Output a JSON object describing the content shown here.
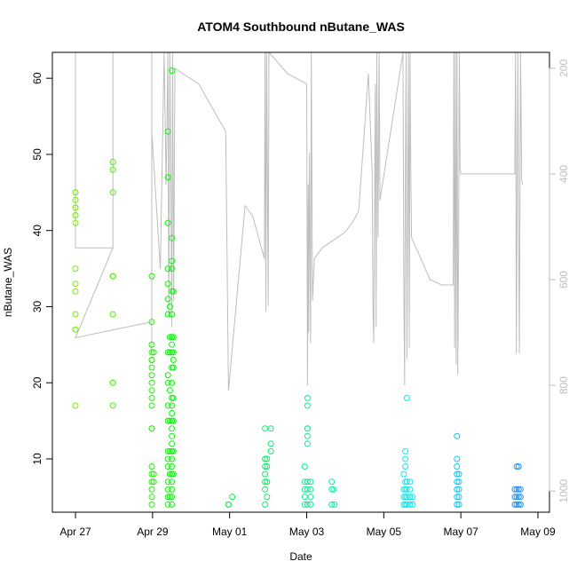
{
  "chart_data": {
    "type": "scatter",
    "title": "ATOM4 Southbound nButane_WAS",
    "xlabel": "Date",
    "ylabel": "nButane_WAS",
    "x_ticks": [
      "Apr 27",
      "Apr 29",
      "May 01",
      "May 03",
      "May 05",
      "May 07",
      "May 09"
    ],
    "y_ticks": [
      10,
      20,
      30,
      40,
      50,
      60
    ],
    "y2_ticks": [
      200,
      400,
      600,
      800,
      1000
    ],
    "x_range_days": [
      -0.6,
      12.3
    ],
    "ylim": [
      3,
      63.4
    ],
    "y2lim": [
      1040,
      170
    ],
    "x_origin": "Apr 27",
    "grid": false,
    "colors": {
      "altitude_line": "#bdbdbd",
      "axis": "#000000",
      "right_axis": "#bdbdbd",
      "start_point": "#77ee00",
      "mid_point": "#11ee11",
      "late_point": "#00eeee",
      "end_point": "#1e90ff"
    },
    "points": [
      [
        0,
        45
      ],
      [
        0,
        45
      ],
      [
        0,
        44
      ],
      [
        0,
        43
      ],
      [
        0,
        43
      ],
      [
        0,
        42
      ],
      [
        0,
        42
      ],
      [
        0,
        41
      ],
      [
        0,
        35
      ],
      [
        0,
        33
      ],
      [
        0,
        32
      ],
      [
        0,
        29
      ],
      [
        0,
        27
      ],
      [
        0,
        27
      ],
      [
        0,
        17
      ],
      [
        0.97,
        49
      ],
      [
        0.97,
        48
      ],
      [
        0.97,
        45
      ],
      [
        0.97,
        34
      ],
      [
        0.97,
        34
      ],
      [
        0.97,
        29
      ],
      [
        0.97,
        20
      ],
      [
        0.97,
        20
      ],
      [
        0.97,
        17
      ],
      [
        1.98,
        34
      ],
      [
        1.98,
        28
      ],
      [
        1.98,
        25
      ],
      [
        1.98,
        25
      ],
      [
        1.98,
        24
      ],
      [
        1.98,
        23
      ],
      [
        1.98,
        23
      ],
      [
        1.98,
        22
      ],
      [
        1.98,
        21
      ],
      [
        1.98,
        20
      ],
      [
        1.98,
        19
      ],
      [
        1.98,
        18
      ],
      [
        1.98,
        17
      ],
      [
        1.98,
        14
      ],
      [
        1.98,
        14
      ],
      [
        1.98,
        9
      ],
      [
        1.98,
        8
      ],
      [
        1.98,
        7
      ],
      [
        1.98,
        6
      ],
      [
        1.98,
        5
      ],
      [
        1.98,
        4
      ],
      [
        2.03,
        24
      ],
      [
        2.03,
        8
      ],
      [
        2.03,
        7
      ],
      [
        2.4,
        53
      ],
      [
        2.4,
        47
      ],
      [
        2.4,
        41
      ],
      [
        2.4,
        35
      ],
      [
        2.4,
        33
      ],
      [
        2.4,
        31
      ],
      [
        2.4,
        29
      ],
      [
        2.4,
        24
      ],
      [
        2.4,
        21
      ],
      [
        2.4,
        20
      ],
      [
        2.4,
        17
      ],
      [
        2.4,
        15
      ],
      [
        2.4,
        11
      ],
      [
        2.4,
        10
      ],
      [
        2.4,
        9
      ],
      [
        2.4,
        7
      ],
      [
        2.4,
        6
      ],
      [
        2.4,
        5
      ],
      [
        2.4,
        4
      ],
      [
        2.45,
        30
      ],
      [
        2.45,
        26
      ],
      [
        2.45,
        24
      ],
      [
        2.45,
        19
      ],
      [
        2.45,
        15
      ],
      [
        2.45,
        11
      ],
      [
        2.45,
        8
      ],
      [
        2.45,
        5
      ],
      [
        2.5,
        61
      ],
      [
        2.5,
        39
      ],
      [
        2.5,
        36
      ],
      [
        2.5,
        35
      ],
      [
        2.5,
        32
      ],
      [
        2.5,
        29
      ],
      [
        2.5,
        26
      ],
      [
        2.5,
        25
      ],
      [
        2.5,
        24
      ],
      [
        2.5,
        22
      ],
      [
        2.5,
        20
      ],
      [
        2.5,
        18
      ],
      [
        2.5,
        17
      ],
      [
        2.5,
        16
      ],
      [
        2.5,
        15
      ],
      [
        2.5,
        14
      ],
      [
        2.5,
        13
      ],
      [
        2.5,
        12
      ],
      [
        2.5,
        11
      ],
      [
        2.5,
        10
      ],
      [
        2.5,
        9
      ],
      [
        2.5,
        8
      ],
      [
        2.5,
        7
      ],
      [
        2.5,
        6
      ],
      [
        2.5,
        5
      ],
      [
        2.5,
        4
      ],
      [
        2.54,
        32
      ],
      [
        2.54,
        26
      ],
      [
        2.54,
        24
      ],
      [
        2.54,
        23
      ],
      [
        2.54,
        22
      ],
      [
        2.54,
        18
      ],
      [
        2.54,
        15
      ],
      [
        2.54,
        11
      ],
      [
        2.54,
        8
      ],
      [
        3.97,
        4
      ],
      [
        3.97,
        4
      ],
      [
        4.07,
        5
      ],
      [
        4.92,
        14
      ],
      [
        4.92,
        10
      ],
      [
        4.92,
        9
      ],
      [
        4.92,
        8
      ],
      [
        4.92,
        7
      ],
      [
        4.92,
        6
      ],
      [
        4.92,
        4
      ],
      [
        4.97,
        10
      ],
      [
        4.97,
        9
      ],
      [
        4.97,
        7
      ],
      [
        4.97,
        5
      ],
      [
        5.07,
        14
      ],
      [
        5.07,
        12
      ],
      [
        5.07,
        11
      ],
      [
        5.95,
        9
      ],
      [
        5.95,
        7
      ],
      [
        5.95,
        6
      ],
      [
        5.95,
        5
      ],
      [
        5.95,
        4
      ],
      [
        6.02,
        18
      ],
      [
        6.02,
        17
      ],
      [
        6.02,
        14
      ],
      [
        6.02,
        14
      ],
      [
        6.02,
        13
      ],
      [
        6.02,
        12
      ],
      [
        6.02,
        7
      ],
      [
        6.02,
        6
      ],
      [
        6.02,
        4
      ],
      [
        6.1,
        7
      ],
      [
        6.1,
        6
      ],
      [
        6.1,
        5
      ],
      [
        6.1,
        4
      ],
      [
        6.65,
        7
      ],
      [
        6.65,
        6
      ],
      [
        6.65,
        4
      ],
      [
        6.7,
        6
      ],
      [
        6.72,
        4
      ],
      [
        8.52,
        8
      ],
      [
        8.52,
        6
      ],
      [
        8.52,
        5
      ],
      [
        8.52,
        4
      ],
      [
        8.56,
        11
      ],
      [
        8.56,
        10
      ],
      [
        8.56,
        9
      ],
      [
        8.56,
        7
      ],
      [
        8.56,
        6
      ],
      [
        8.56,
        5
      ],
      [
        8.56,
        4
      ],
      [
        8.6,
        18
      ],
      [
        8.6,
        7
      ],
      [
        8.6,
        6
      ],
      [
        8.6,
        5
      ],
      [
        8.6,
        4
      ],
      [
        8.68,
        7
      ],
      [
        8.68,
        6
      ],
      [
        8.68,
        5
      ],
      [
        8.68,
        4
      ],
      [
        8.75,
        5
      ],
      [
        8.75,
        4
      ],
      [
        9.9,
        13
      ],
      [
        9.9,
        10
      ],
      [
        9.9,
        9
      ],
      [
        9.9,
        8
      ],
      [
        9.9,
        7
      ],
      [
        9.9,
        6
      ],
      [
        9.9,
        5
      ],
      [
        9.9,
        4
      ],
      [
        9.95,
        8
      ],
      [
        9.95,
        7
      ],
      [
        9.95,
        6
      ],
      [
        9.95,
        5
      ],
      [
        9.95,
        4
      ],
      [
        11.4,
        6
      ],
      [
        11.4,
        5
      ],
      [
        11.4,
        4
      ],
      [
        11.45,
        9
      ],
      [
        11.45,
        6
      ],
      [
        11.45,
        5
      ],
      [
        11.45,
        4
      ],
      [
        11.5,
        9
      ],
      [
        11.5,
        6
      ],
      [
        11.5,
        5
      ],
      [
        11.5,
        4
      ],
      [
        11.55,
        6
      ],
      [
        11.55,
        5
      ],
      [
        11.55,
        4
      ]
    ],
    "altitude_line": [
      [
        0,
        170
      ],
      [
        0,
        290
      ],
      [
        0,
        540
      ],
      [
        0.5,
        540
      ],
      [
        0.97,
        540
      ],
      [
        0.97,
        170
      ],
      [
        0.97,
        540
      ],
      [
        0.97,
        310
      ],
      [
        0.97,
        540
      ],
      [
        0,
        710
      ],
      [
        1.3,
        690
      ],
      [
        1.98,
        680
      ],
      [
        1.98,
        170
      ],
      [
        1.98,
        740
      ],
      [
        1.98,
        320
      ],
      [
        2.2,
        580
      ],
      [
        2.3,
        170
      ],
      [
        2.35,
        420
      ],
      [
        2.4,
        170
      ],
      [
        2.42,
        670
      ],
      [
        2.45,
        170
      ],
      [
        2.5,
        690
      ],
      [
        2.52,
        170
      ],
      [
        2.55,
        640
      ],
      [
        2.58,
        200
      ],
      [
        3.2,
        230
      ],
      [
        3.9,
        320
      ],
      [
        3.97,
        810
      ],
      [
        4.4,
        460
      ],
      [
        4.6,
        480
      ],
      [
        4.9,
        560
      ],
      [
        4.92,
        170
      ],
      [
        4.94,
        660
      ],
      [
        4.96,
        170
      ],
      [
        5.0,
        650
      ],
      [
        5.02,
        170
      ],
      [
        5.5,
        210
      ],
      [
        6.0,
        230
      ],
      [
        6.02,
        800
      ],
      [
        6.04,
        420
      ],
      [
        6.05,
        700
      ],
      [
        6.07,
        360
      ],
      [
        6.1,
        720
      ],
      [
        6.12,
        170
      ],
      [
        6.15,
        640
      ],
      [
        6.2,
        560
      ],
      [
        6.4,
        540
      ],
      [
        7.0,
        510
      ],
      [
        7.2,
        490
      ],
      [
        7.35,
        470
      ],
      [
        7.6,
        210
      ],
      [
        7.7,
        400
      ],
      [
        7.72,
        660
      ],
      [
        7.74,
        720
      ],
      [
        7.78,
        230
      ],
      [
        7.8,
        690
      ],
      [
        7.82,
        170
      ],
      [
        7.85,
        520
      ],
      [
        7.88,
        170
      ],
      [
        7.9,
        450
      ],
      [
        8.5,
        170
      ],
      [
        8.52,
        600
      ],
      [
        8.54,
        800
      ],
      [
        8.56,
        420
      ],
      [
        8.58,
        170
      ],
      [
        8.6,
        750
      ],
      [
        8.62,
        460
      ],
      [
        8.64,
        170
      ],
      [
        8.66,
        730
      ],
      [
        8.68,
        170
      ],
      [
        8.7,
        380
      ],
      [
        8.72,
        520
      ],
      [
        9.2,
        600
      ],
      [
        9.5,
        610
      ],
      [
        9.6,
        610
      ],
      [
        9.8,
        610
      ],
      [
        9.82,
        170
      ],
      [
        9.84,
        730
      ],
      [
        9.86,
        170
      ],
      [
        9.88,
        760
      ],
      [
        9.9,
        170
      ],
      [
        9.92,
        780
      ],
      [
        9.94,
        540
      ],
      [
        9.96,
        170
      ],
      [
        9.98,
        390
      ],
      [
        10.0,
        400
      ],
      [
        11.0,
        400
      ],
      [
        11.4,
        400
      ],
      [
        11.42,
        170
      ],
      [
        11.44,
        740
      ],
      [
        11.46,
        460
      ],
      [
        11.48,
        170
      ],
      [
        11.5,
        500
      ],
      [
        11.52,
        740
      ],
      [
        11.55,
        170
      ],
      [
        11.58,
        410
      ],
      [
        11.6,
        420
      ]
    ]
  }
}
